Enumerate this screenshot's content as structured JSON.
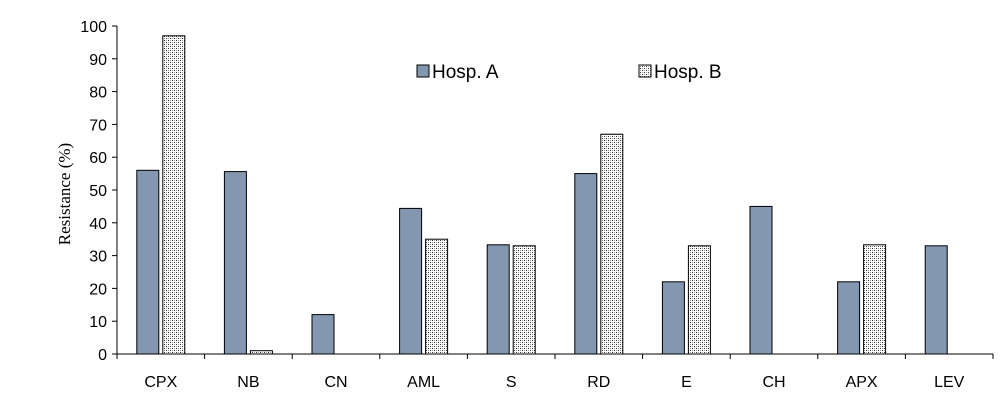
{
  "chart_data": {
    "type": "bar",
    "categories": [
      "CPX",
      "NB",
      "CN",
      "AML",
      "S",
      "RD",
      "E",
      "CH",
      "APX",
      "LEV"
    ],
    "series": [
      {
        "name": "Hosp. A",
        "values": [
          56,
          55.6,
          12,
          44.4,
          33.3,
          55,
          22,
          45,
          22,
          33
        ],
        "color": "#8497b0",
        "pattern": "solid"
      },
      {
        "name": "Hosp. B",
        "values": [
          97,
          1,
          0,
          35,
          33,
          67,
          33,
          0,
          33.3,
          0
        ],
        "color": "#ffffff",
        "pattern": "dotted-hatch"
      }
    ],
    "title": "",
    "xlabel": "",
    "ylabel": "Resistance (%)",
    "ylim": [
      0,
      100
    ],
    "yticks": [
      0,
      10,
      20,
      30,
      40,
      50,
      60,
      70,
      80,
      90,
      100
    ],
    "grid": false,
    "legend_position": "top-right"
  }
}
